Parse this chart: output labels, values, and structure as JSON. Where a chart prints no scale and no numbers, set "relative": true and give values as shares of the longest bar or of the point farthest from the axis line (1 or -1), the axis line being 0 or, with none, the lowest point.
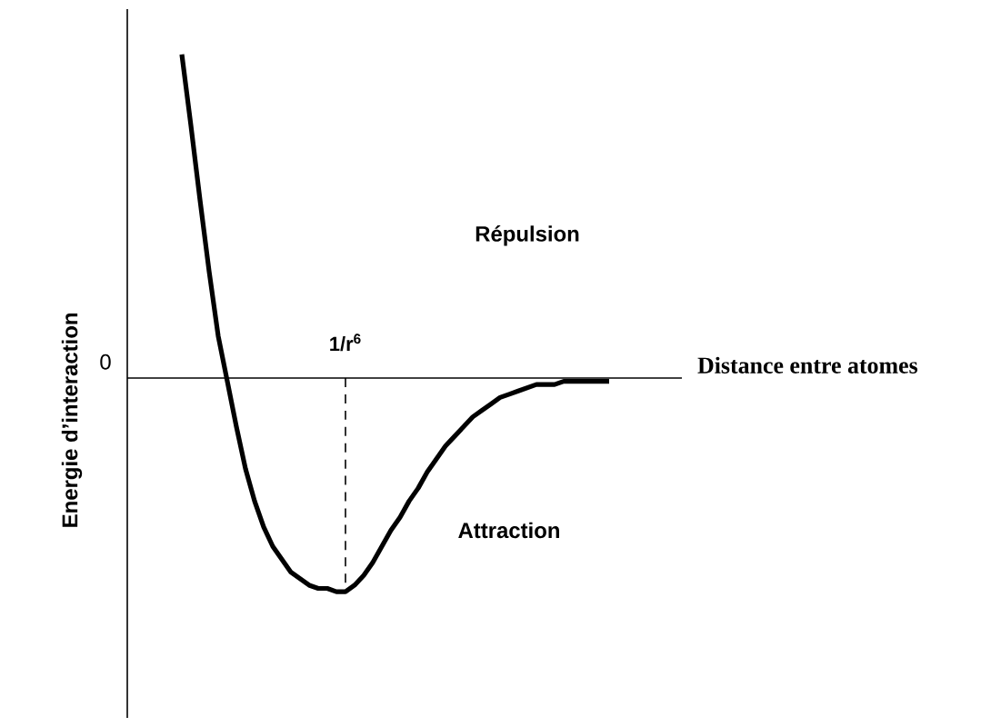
{
  "chart_data": {
    "type": "line",
    "relative": true,
    "color": "#000000",
    "xlabel": "Distance entre atomes",
    "ylabel": "Energie d’interaction",
    "categories": [
      null,
      null,
      null,
      null,
      null,
      null,
      null,
      null,
      null,
      null,
      null,
      null,
      null,
      null,
      null,
      null,
      null,
      null,
      null,
      null,
      null,
      null,
      null,
      null,
      null,
      null,
      null,
      null,
      null,
      null,
      null,
      null,
      null,
      null,
      null,
      null,
      null,
      null,
      null,
      null,
      null,
      null,
      null,
      null,
      null,
      null,
      null,
      null
    ],
    "values": [
      1,
      0.78,
      0.55,
      0.33,
      0.13,
      -0.01,
      -0.15,
      -0.28,
      -0.38,
      -0.46,
      -0.52,
      -0.56,
      -0.6,
      -0.62,
      -0.64,
      -0.65,
      -0.65,
      -0.66,
      -0.66,
      -0.64,
      -0.61,
      -0.57,
      -0.52,
      -0.47,
      -0.43,
      -0.38,
      -0.34,
      -0.29,
      -0.25,
      -0.21,
      -0.18,
      -0.15,
      -0.12,
      -0.1,
      -0.08,
      -0.06,
      -0.05,
      -0.04,
      -0.03,
      -0.02,
      -0.02,
      -0.02,
      -0.01,
      -0.01,
      -0.01,
      -0.01,
      -0.01,
      -0.01
    ],
    "annotations": [
      "0",
      "Répulsion",
      "1/r$^{6}$",
      "Attraction"
    ]
  }
}
